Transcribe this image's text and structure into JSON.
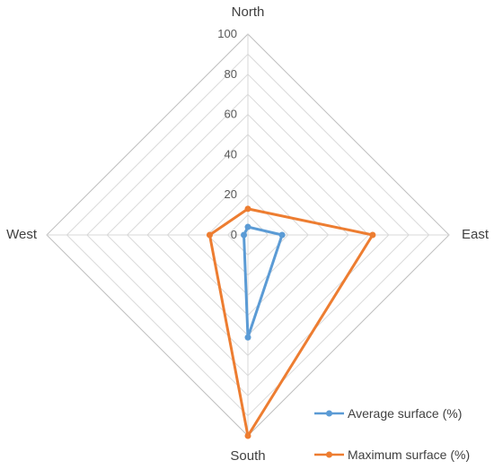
{
  "chart_data": {
    "type": "radar",
    "axes": [
      "North",
      "East",
      "South",
      "West"
    ],
    "tick_values": [
      0,
      20,
      40,
      60,
      80,
      100
    ],
    "tick_labels": [
      "0",
      "20",
      "40",
      "60",
      "80",
      "100"
    ],
    "rlim": [
      0,
      100
    ],
    "grid": true,
    "legend_position": "bottom-right",
    "series": [
      {
        "name": "Average surface (%)",
        "color": "#5b9bd5",
        "values": [
          4,
          17,
          51,
          2
        ]
      },
      {
        "name": "Maximum surface (%)",
        "color": "#ed7d31",
        "values": [
          13,
          62,
          100,
          19
        ]
      }
    ]
  }
}
